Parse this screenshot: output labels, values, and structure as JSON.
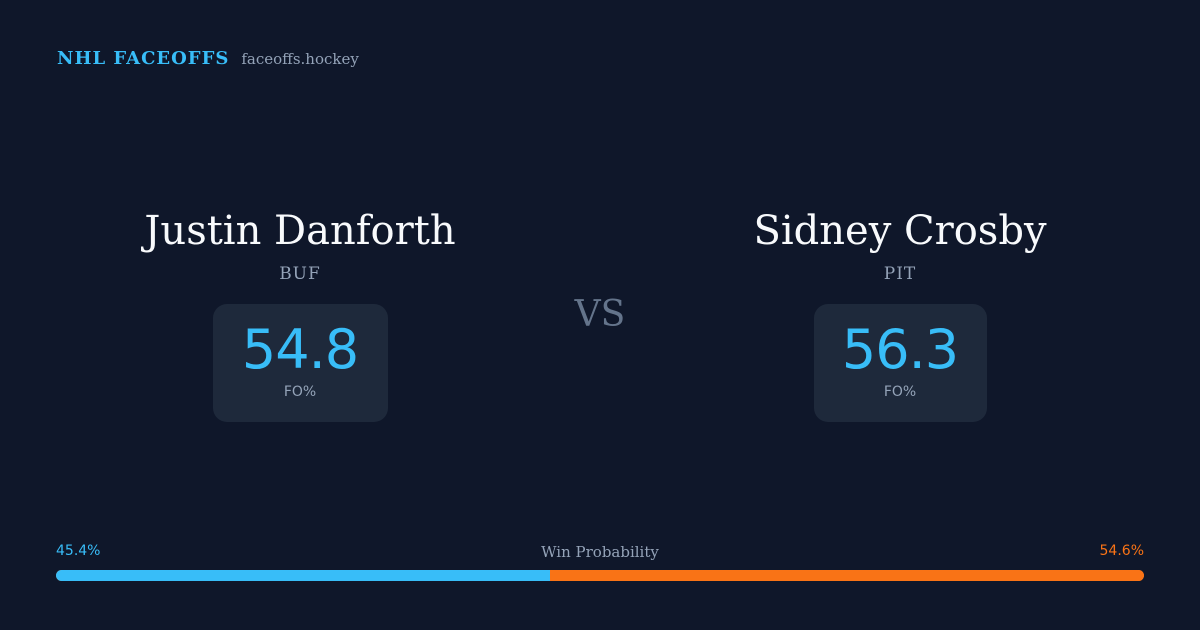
{
  "header": {
    "brand": "NHL FACEOFFS",
    "site": "faceoffs.hockey"
  },
  "players": [
    {
      "name": "Justin Danforth",
      "team": "BUF",
      "stat_value": "54.8",
      "stat_label": "FO%"
    },
    {
      "name": "Sidney Crosby",
      "team": "PIT",
      "stat_value": "56.3",
      "stat_label": "FO%"
    }
  ],
  "vs_label": "VS",
  "win_probability": {
    "title": "Win Probability",
    "left_label": "45.4%",
    "right_label": "54.6%",
    "left_fraction": 0.454,
    "right_fraction": 0.546
  },
  "colors": {
    "background": "#0f172a",
    "accent": "#38bdf8",
    "opponent": "#f97316",
    "card": "#1e293b",
    "muted": "#94a3b8"
  }
}
